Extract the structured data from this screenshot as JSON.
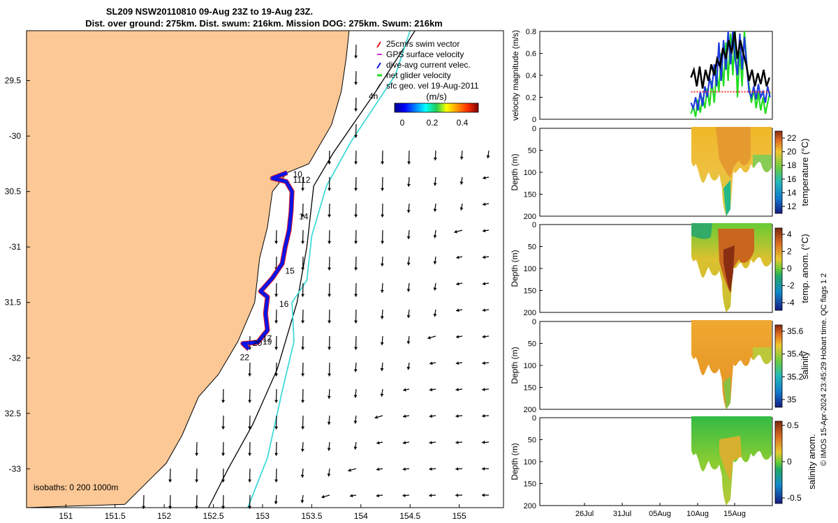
{
  "header": {
    "title_line1": "SL209 NSW20110810 09-Aug 23Z to 19-Aug 23Z.",
    "title_line2": "Dist. over ground: 275km. Dist. swum: 216km. Mission DOG: 275km. Swum: 216km"
  },
  "colors": {
    "land": "#fbc896",
    "track_blue": "#0a14e6",
    "track_red": "#e61e1e",
    "current_cyan": "#40dada",
    "isobath": "#000000",
    "vel_green": "#22dd22",
    "vel_blue": "#1e3cdc",
    "vel_black": "#000000",
    "vel_red": "#ee3333"
  },
  "footer": {
    "credit": "© IMOS 15-Apr-2024 23:45:29 Hobart time. QC flags 1  2"
  },
  "chart_data": [
    {
      "id": "map",
      "type": "scatter",
      "xlim": [
        150.6,
        155.45
      ],
      "ylim": [
        -33.35,
        -29.05
      ],
      "x_ticks": [
        151,
        151.5,
        152,
        152.5,
        153,
        153.5,
        154,
        154.5,
        155
      ],
      "x_tick_labels": [
        "151",
        "151.5",
        "152",
        "152.5",
        "153",
        "153.5",
        "154",
        "154.5",
        "155"
      ],
      "y_ticks": [
        -29.5,
        -30,
        -30.5,
        -31,
        -31.5,
        -32,
        -32.5,
        -33
      ],
      "y_tick_labels": [
        "29.5",
        "-30",
        "30.5",
        "-31",
        "31.5",
        "-32",
        "32.5",
        "-33"
      ],
      "isobaths_label": "isobaths: 0   200   1000m",
      "legend": [
        {
          "label": "25cm/s swim vector",
          "color": "#e61e1e"
        },
        {
          "label": "GPS surface velocity",
          "color": "#cc33cc"
        },
        {
          "label": "dive-avg current velec.",
          "color": "#0a14e6"
        },
        {
          "label": "net glider velocity",
          "color": "#22dd22"
        },
        {
          "label": "sfc geo. vel 19-Aug-2011",
          "color": "#000000"
        }
      ],
      "colorbar": {
        "label": "(m/s)",
        "range": [
          0,
          0.5
        ],
        "ticks": [
          "0",
          "0.2",
          "0.4"
        ]
      },
      "scale_label": "4h",
      "day_labels": [
        {
          "text": "10",
          "lon": 153.31,
          "lat": -30.37
        },
        {
          "text": "1112",
          "lon": 153.31,
          "lat": -30.42
        },
        {
          "text": "14",
          "lon": 153.37,
          "lat": -30.75
        },
        {
          "text": "15",
          "lon": 153.23,
          "lat": -31.24
        },
        {
          "text": "16",
          "lon": 153.17,
          "lat": -31.54
        },
        {
          "text": "17",
          "lon": 153.0,
          "lat": -31.85
        },
        {
          "text": "19",
          "lon": 153.0,
          "lat": -31.88
        },
        {
          "text": "20",
          "lon": 152.9,
          "lat": -31.89
        },
        {
          "text": "22",
          "lon": 152.77,
          "lat": -32.02
        }
      ],
      "glider_track": [
        [
          153.25,
          -30.33
        ],
        [
          153.1,
          -30.38
        ],
        [
          153.24,
          -30.41
        ],
        [
          153.3,
          -30.5
        ],
        [
          153.29,
          -30.68
        ],
        [
          153.27,
          -30.85
        ],
        [
          153.23,
          -31.0
        ],
        [
          153.2,
          -31.15
        ],
        [
          153.1,
          -31.28
        ],
        [
          152.98,
          -31.4
        ],
        [
          153.05,
          -31.45
        ],
        [
          153.03,
          -31.6
        ],
        [
          153.05,
          -31.75
        ],
        [
          152.95,
          -31.86
        ],
        [
          152.8,
          -31.87
        ],
        [
          152.86,
          -31.92
        ]
      ],
      "coastline": [
        [
          153.88,
          -29.05
        ],
        [
          153.85,
          -29.3
        ],
        [
          153.8,
          -29.6
        ],
        [
          153.7,
          -29.9
        ],
        [
          153.47,
          -30.25
        ],
        [
          153.25,
          -30.33
        ],
        [
          153.1,
          -30.5
        ],
        [
          153.05,
          -30.82
        ],
        [
          152.97,
          -31.1
        ],
        [
          152.92,
          -31.5
        ],
        [
          152.75,
          -31.85
        ],
        [
          152.55,
          -32.15
        ],
        [
          152.35,
          -32.35
        ],
        [
          152.18,
          -32.7
        ],
        [
          152.02,
          -32.95
        ],
        [
          151.85,
          -33.1
        ],
        [
          151.6,
          -33.32
        ]
      ],
      "isobath_200": [
        [
          154.55,
          -29.05
        ],
        [
          154.15,
          -29.6
        ],
        [
          153.72,
          -30.15
        ],
        [
          153.52,
          -30.45
        ],
        [
          153.45,
          -31.0
        ],
        [
          153.35,
          -31.5
        ],
        [
          153.15,
          -32.1
        ],
        [
          152.9,
          -32.6
        ],
        [
          152.65,
          -33.0
        ],
        [
          152.45,
          -33.35
        ]
      ],
      "current_core": [
        [
          154.5,
          -29.05
        ],
        [
          154.35,
          -29.45
        ],
        [
          153.9,
          -30.05
        ],
        [
          153.65,
          -30.45
        ],
        [
          153.5,
          -30.9
        ],
        [
          153.45,
          -31.3
        ],
        [
          153.3,
          -31.5
        ],
        [
          153.32,
          -31.85
        ],
        [
          153.2,
          -32.3
        ],
        [
          153.05,
          -32.9
        ],
        [
          152.85,
          -33.35
        ]
      ]
    },
    {
      "id": "velocity",
      "type": "line",
      "ylabel": "velocity magnitude (m/s)",
      "xlim": [
        0,
        40
      ],
      "ylim": [
        0,
        0.8
      ],
      "y_ticks": [
        "0",
        "0.2",
        "0.4",
        "0.6",
        "0.8"
      ],
      "series": [
        {
          "name": "net glider velocity",
          "color": "#22dd22",
          "x": [
            26.0,
            26.4,
            26.8,
            27.2,
            27.6,
            28.0,
            28.4,
            28.8,
            29.2,
            29.6,
            30.0,
            30.4,
            30.8,
            31.2,
            31.6,
            32.0,
            32.4,
            32.8,
            33.2,
            33.6,
            34.0,
            34.4,
            34.8,
            35.2,
            35.6,
            36.0,
            36.4,
            36.8,
            37.2,
            37.6,
            38.0,
            38.4,
            38.8,
            39.2,
            39.6
          ],
          "values": [
            0.05,
            0.12,
            0.02,
            0.18,
            0.06,
            0.2,
            0.1,
            0.28,
            0.12,
            0.35,
            0.15,
            0.45,
            0.25,
            0.6,
            0.3,
            0.7,
            0.35,
            0.78,
            0.4,
            0.8,
            0.2,
            0.62,
            0.3,
            0.8,
            0.5,
            0.3,
            0.15,
            0.28,
            0.1,
            0.24,
            0.08,
            0.2,
            0.05,
            0.15,
            0.25
          ]
        },
        {
          "name": "dive-avg current",
          "color": "#1e3cdc",
          "x": [
            26.0,
            26.4,
            26.8,
            27.2,
            27.6,
            28.0,
            28.4,
            28.8,
            29.2,
            29.6,
            30.0,
            30.4,
            30.8,
            31.2,
            31.6,
            32.0,
            32.4,
            32.8,
            33.2,
            33.6,
            34.0,
            34.4,
            34.8,
            35.2,
            35.6,
            36.0,
            36.4,
            36.8,
            37.2,
            37.6,
            38.0,
            38.4,
            38.8,
            39.2,
            39.6
          ],
          "values": [
            0.15,
            0.1,
            0.2,
            0.08,
            0.25,
            0.12,
            0.3,
            0.2,
            0.38,
            0.28,
            0.5,
            0.3,
            0.7,
            0.35,
            0.72,
            0.45,
            0.8,
            0.5,
            0.8,
            0.55,
            0.4,
            0.78,
            0.45,
            0.75,
            0.48,
            0.25,
            0.2,
            0.3,
            0.18,
            0.32,
            0.2,
            0.25,
            0.15,
            0.3,
            0.2
          ]
        },
        {
          "name": "sfc geo. vel",
          "color": "#000000",
          "x": [
            26.0,
            26.5,
            27.0,
            27.5,
            28.0,
            28.5,
            29.0,
            29.5,
            30.0,
            30.5,
            31.0,
            31.5,
            32.0,
            32.5,
            33.0,
            33.5,
            34.0,
            34.5,
            35.0,
            35.5,
            36.0,
            36.5,
            37.0,
            37.5,
            38.0,
            38.5,
            39.0,
            39.5
          ],
          "values": [
            0.38,
            0.45,
            0.3,
            0.48,
            0.28,
            0.45,
            0.35,
            0.5,
            0.4,
            0.55,
            0.48,
            0.65,
            0.55,
            0.72,
            0.6,
            0.8,
            0.55,
            0.72,
            0.6,
            0.5,
            0.35,
            0.45,
            0.3,
            0.42,
            0.32,
            0.45,
            0.3,
            0.38
          ]
        },
        {
          "name": "25cm/s swim",
          "color": "#ee3333",
          "x": [
            26.0,
            39.6
          ],
          "values": [
            0.25,
            0.25
          ]
        }
      ]
    },
    {
      "id": "temperature",
      "type": "heatmap",
      "ylabel": "Depth (m)",
      "cblabel": "temperature (°C)",
      "ylim": [
        0,
        200
      ],
      "y_ticks": [
        "0",
        "50",
        "100",
        "150",
        "200"
      ],
      "cb_ticks": [
        "22",
        "20",
        "18",
        "16",
        "14",
        "12"
      ]
    },
    {
      "id": "temp_anomaly",
      "type": "heatmap",
      "ylabel": "Depth (m)",
      "cblabel": "temp. anom. (°C)",
      "ylim": [
        0,
        200
      ],
      "y_ticks": [
        "0",
        "50",
        "100",
        "150",
        "200"
      ],
      "cb_ticks": [
        "4",
        "2",
        "0",
        "-2",
        "-4"
      ]
    },
    {
      "id": "salinity",
      "type": "heatmap",
      "ylabel": "Depth (m)",
      "cblabel": "salinity",
      "ylim": [
        0,
        200
      ],
      "y_ticks": [
        "0",
        "50",
        "100",
        "150",
        "200"
      ],
      "cb_ticks": [
        "35.6",
        "35.4",
        "35.2",
        "35"
      ]
    },
    {
      "id": "sal_anomaly",
      "type": "heatmap",
      "ylabel": "Depth (m)",
      "cblabel": "salinity anom.",
      "ylim": [
        0,
        200
      ],
      "y_ticks": [
        "0",
        "50",
        "100",
        "150",
        "200"
      ],
      "cb_ticks": [
        "0.5",
        "0",
        "-0.5"
      ],
      "x_tick_labels": [
        "26Jul",
        "31Jul",
        "05Aug",
        "10Aug",
        "15Aug"
      ]
    }
  ]
}
